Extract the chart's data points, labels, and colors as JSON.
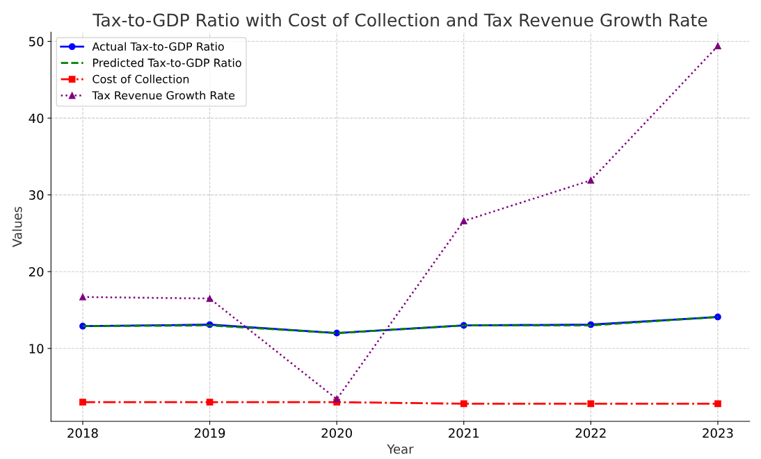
{
  "chart_data": {
    "type": "line",
    "title": "Tax-to-GDP Ratio with Cost of Collection and Tax Revenue Growth Rate",
    "xlabel": "Year",
    "ylabel": "Values",
    "x": [
      2018,
      2019,
      2020,
      2021,
      2022,
      2023
    ],
    "series": [
      {
        "name": "Actual Tax-to-GDP Ratio",
        "color": "#0000ff",
        "values": [
          12.9,
          13.1,
          12.0,
          13.0,
          13.1,
          14.1
        ],
        "marker": "circle",
        "line_style": "solid"
      },
      {
        "name": "Predicted Tax-to-GDP Ratio",
        "color": "#008000",
        "values": [
          12.9,
          13.0,
          12.0,
          13.0,
          13.0,
          14.1
        ],
        "marker": "none",
        "line_style": "dashed"
      },
      {
        "name": "Cost of Collection",
        "color": "#ff0000",
        "values": [
          3.0,
          3.0,
          3.0,
          2.8,
          2.8,
          2.8
        ],
        "marker": "square",
        "line_style": "dashdot"
      },
      {
        "name": "Tax Revenue Growth Rate",
        "color": "#800080",
        "values": [
          16.7,
          16.5,
          3.4,
          26.6,
          31.9,
          49.4
        ],
        "marker": "triangle",
        "line_style": "dotted"
      }
    ],
    "xlim": [
      2017.75,
      2023.25
    ],
    "xticks": [
      2018,
      2019,
      2020,
      2021,
      2022,
      2023
    ],
    "ylim": [
      0.5,
      51.2
    ],
    "yticks": [
      10,
      20,
      30,
      40,
      50
    ],
    "grid": true,
    "legend": "top left"
  }
}
